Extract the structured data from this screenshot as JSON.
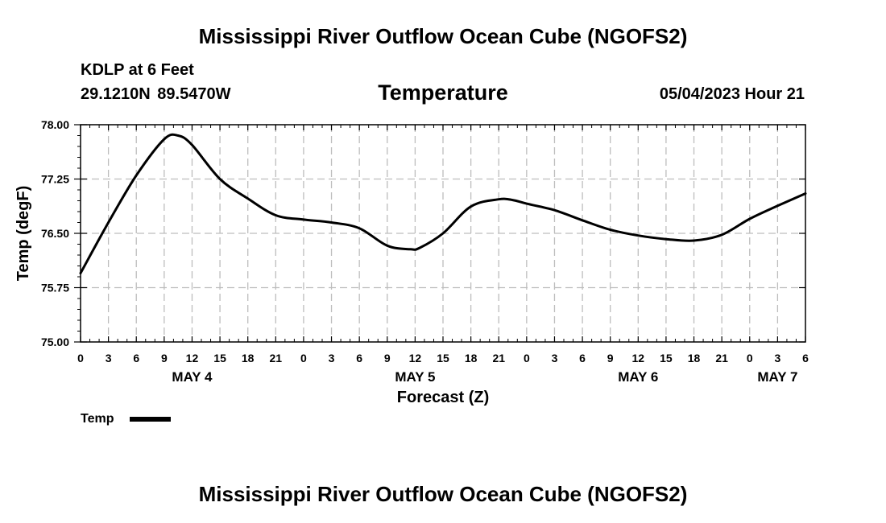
{
  "header": {
    "title": "Mississippi River Outflow Ocean Cube (NGOFS2)",
    "footer_title": "Mississippi River Outflow Ocean Cube (NGOFS2)",
    "station": "KDLP at 6 Feet",
    "coordinates": "29.1210N  89.5470W",
    "datetime": "05/04/2023 Hour 21"
  },
  "chart_data": {
    "type": "line",
    "title": "Temperature",
    "xlabel": "Forecast (Z)",
    "ylabel": "Temp (degF)",
    "ylim": [
      75.0,
      78.0
    ],
    "yticks": [
      75.0,
      75.75,
      76.5,
      77.25,
      78.0
    ],
    "ytick_labels": [
      "75.00",
      "75.75",
      "76.50",
      "77.25",
      "78.00"
    ],
    "xlim": [
      0,
      78
    ],
    "xticks": [
      0,
      3,
      6,
      9,
      12,
      15,
      18,
      21,
      24,
      27,
      30,
      33,
      36,
      39,
      42,
      45,
      48,
      51,
      54,
      57,
      60,
      63,
      66,
      69,
      72,
      75,
      78
    ],
    "xtick_labels": [
      "0",
      "3",
      "6",
      "9",
      "12",
      "15",
      "18",
      "21",
      "0",
      "3",
      "6",
      "9",
      "12",
      "15",
      "18",
      "21",
      "0",
      "3",
      "6",
      "9",
      "12",
      "15",
      "18",
      "21",
      "0",
      "3",
      "6"
    ],
    "day_labels": [
      {
        "x": 12,
        "label": "MAY 4"
      },
      {
        "x": 36,
        "label": "MAY 5"
      },
      {
        "x": 60,
        "label": "MAY 6"
      },
      {
        "x": 75,
        "label": "MAY 7"
      }
    ],
    "grid": true,
    "legend": {
      "position": "bottom-left",
      "entries": [
        "Temp"
      ]
    },
    "series": [
      {
        "name": "Temp",
        "x": [
          0,
          3,
          6,
          9,
          10.5,
          12,
          15,
          18,
          21,
          24,
          27,
          30,
          33,
          35.5,
          36.5,
          39,
          42,
          45,
          46.5,
          48,
          51,
          54,
          57,
          60,
          63,
          66,
          69,
          72,
          75,
          78
        ],
        "values": [
          75.95,
          76.65,
          77.3,
          77.8,
          77.85,
          77.72,
          77.25,
          76.98,
          76.75,
          76.69,
          76.65,
          76.57,
          76.33,
          76.28,
          76.3,
          76.5,
          76.87,
          76.97,
          76.96,
          76.91,
          76.82,
          76.68,
          76.55,
          76.47,
          76.42,
          76.4,
          76.48,
          76.7,
          76.88,
          77.05
        ]
      }
    ]
  }
}
